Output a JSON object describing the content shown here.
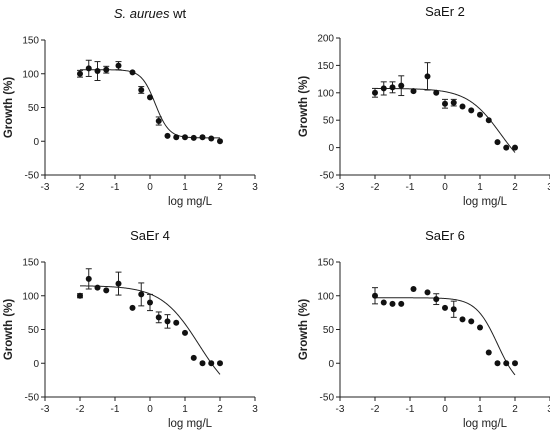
{
  "chart_data": [
    {
      "type": "scatter",
      "title": "wt",
      "title_italic": "S. aurues",
      "xlabel": "log mg/L",
      "ylabel": "Growth (%)",
      "xlim": [
        -3,
        3
      ],
      "ylim": [
        -50,
        150
      ],
      "xticks": [
        "-3",
        "-2",
        "-1",
        "0",
        "1",
        "2",
        "3"
      ],
      "yticks": [
        "-50",
        "0",
        "50",
        "100",
        "150"
      ],
      "x": [
        -2,
        -1.75,
        -1.5,
        -1.25,
        -0.9,
        -0.5,
        -0.25,
        0,
        0.25,
        0.5,
        0.75,
        1,
        1.25,
        1.5,
        1.75,
        2
      ],
      "y": [
        100,
        108,
        104,
        106,
        112,
        102,
        76,
        65,
        30,
        8,
        6,
        6,
        5,
        6,
        4,
        0
      ],
      "err": [
        5,
        12,
        14,
        5,
        6,
        0,
        5,
        0,
        6,
        0,
        0,
        0,
        0,
        0,
        0,
        0
      ],
      "fit": {
        "top": 106,
        "bottom": 5,
        "logec50": 0.15,
        "hill": 2.2
      },
      "grid": false,
      "legend": "none"
    },
    {
      "type": "scatter",
      "title": "SaEr 2",
      "xlabel": "log mg/L",
      "ylabel": "Growth (%)",
      "xlim": [
        -3,
        3
      ],
      "ylim": [
        -50,
        200
      ],
      "xticks": [
        "-3",
        "-2",
        "-1",
        "0",
        "1",
        "2",
        "3"
      ],
      "yticks": [
        "-50",
        "0",
        "50",
        "100",
        "150",
        "200"
      ],
      "x": [
        -2,
        -1.75,
        -1.5,
        -1.25,
        -0.9,
        -0.5,
        -0.25,
        0,
        0.25,
        0.5,
        0.75,
        1,
        1.25,
        1.5,
        1.75,
        2
      ],
      "y": [
        100,
        108,
        110,
        113,
        103,
        130,
        100,
        80,
        82,
        75,
        68,
        60,
        50,
        10,
        0,
        0
      ],
      "err": [
        8,
        12,
        10,
        18,
        0,
        25,
        0,
        8,
        6,
        0,
        0,
        0,
        0,
        0,
        0,
        0
      ],
      "fit": {
        "top": 108,
        "bottom": -60,
        "logec50": 1.6,
        "hill": 0.9
      },
      "grid": false,
      "legend": "none"
    },
    {
      "type": "scatter",
      "title": "SaEr 4",
      "xlabel": "log mg/L",
      "ylabel": "Growth (%)",
      "xlim": [
        -3,
        3
      ],
      "ylim": [
        -50,
        150
      ],
      "xticks": [
        "-3",
        "-2",
        "-1",
        "0",
        "1",
        "2",
        "3"
      ],
      "yticks": [
        "-50",
        "0",
        "50",
        "100",
        "150"
      ],
      "x": [
        -2,
        -1.75,
        -1.5,
        -1.25,
        -0.9,
        -0.5,
        -0.25,
        0,
        0.25,
        0.5,
        0.75,
        1,
        1.25,
        1.5,
        1.75,
        2
      ],
      "y": [
        100,
        125,
        112,
        108,
        118,
        82,
        102,
        90,
        68,
        62,
        60,
        45,
        8,
        0,
        0,
        0
      ],
      "err": [
        3,
        15,
        0,
        0,
        17,
        0,
        17,
        12,
        8,
        10,
        0,
        0,
        0,
        0,
        0,
        0
      ],
      "fit": {
        "top": 115,
        "bottom": -60,
        "logec50": 1.4,
        "hill": 0.8
      },
      "grid": false,
      "legend": "none"
    },
    {
      "type": "scatter",
      "title": "SaEr 6",
      "xlabel": "log mg/L",
      "ylabel": "Growth (%)",
      "xlim": [
        -3,
        3
      ],
      "ylim": [
        -50,
        150
      ],
      "xticks": [
        "-3",
        "-2",
        "-1",
        "0",
        "1",
        "2",
        "3"
      ],
      "yticks": [
        "-50",
        "0",
        "50",
        "100",
        "150"
      ],
      "x": [
        -2,
        -1.75,
        -1.5,
        -1.25,
        -0.9,
        -0.5,
        -0.25,
        0,
        0.25,
        0.5,
        0.75,
        1,
        1.25,
        1.5,
        1.75,
        2
      ],
      "y": [
        100,
        90,
        88,
        88,
        110,
        105,
        95,
        82,
        80,
        65,
        62,
        53,
        16,
        0,
        0,
        0
      ],
      "err": [
        12,
        0,
        0,
        0,
        0,
        0,
        8,
        0,
        12,
        0,
        0,
        0,
        0,
        0,
        0,
        0
      ],
      "fit": {
        "top": 97,
        "bottom": -40,
        "logec50": 1.5,
        "hill": 1.4
      },
      "grid": false,
      "legend": "none"
    }
  ]
}
